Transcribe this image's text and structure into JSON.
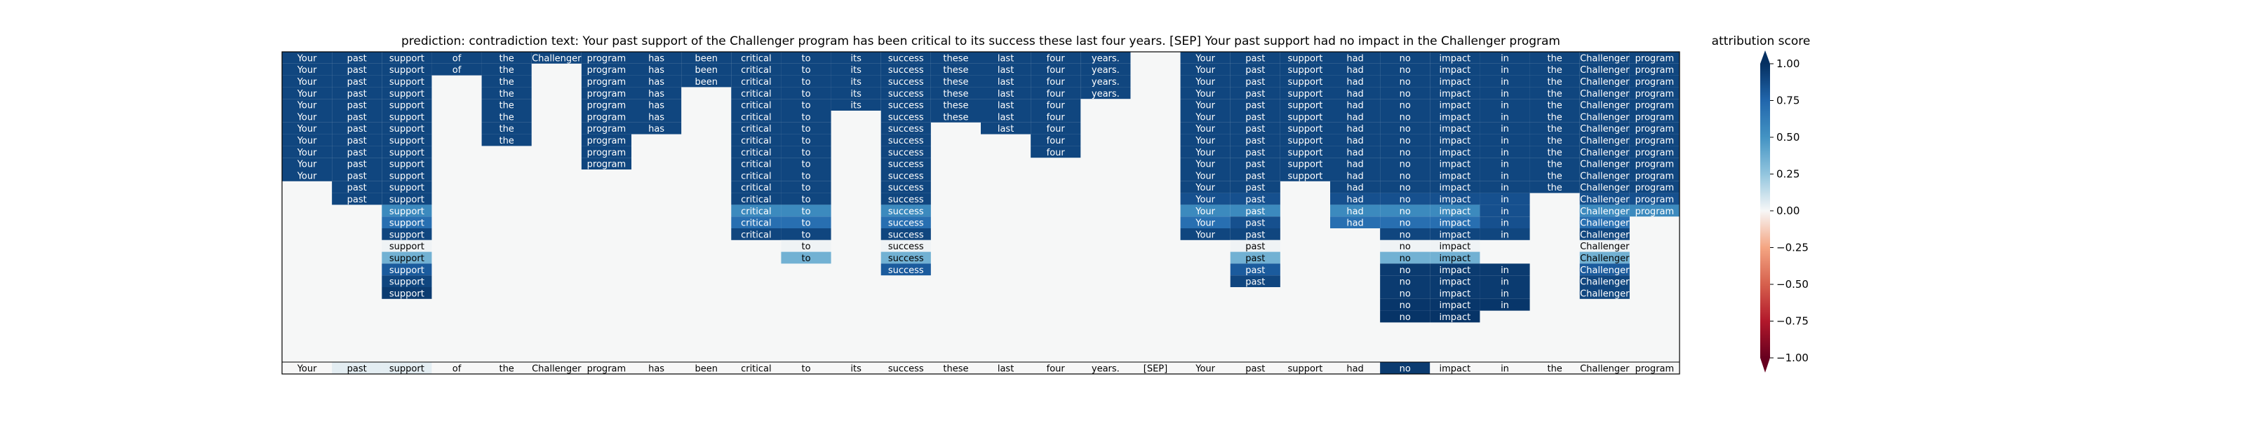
{
  "chart_data": {
    "type": "heatmap",
    "title": "prediction:  contradiction     text:  Your past support of the Challenger program has been critical to its success these last four years. [SEP] Your past support had no impact in the Challenger program",
    "tokens": [
      "Your",
      "past",
      "support",
      "of",
      "the",
      "Challenger",
      "program",
      "has",
      "been",
      "critical",
      "to",
      "its",
      "success",
      "these",
      "last",
      "four",
      "years.",
      "[SEP]",
      "Your",
      "past",
      "support",
      "had",
      "no",
      "impact",
      "in",
      "the",
      "Challenger",
      "program"
    ],
    "rows": [
      [
        0.9,
        0.9,
        0.9,
        0.9,
        0.9,
        0.9,
        0.9,
        0.9,
        0.9,
        0.9,
        0.9,
        0.9,
        0.9,
        0.9,
        0.9,
        0.9,
        0.9,
        null,
        0.9,
        0.9,
        0.9,
        0.9,
        0.9,
        0.9,
        0.9,
        0.9,
        0.9,
        0.9
      ],
      [
        0.9,
        0.9,
        0.9,
        0.9,
        0.9,
        null,
        0.9,
        0.9,
        0.9,
        0.9,
        0.9,
        0.9,
        0.9,
        0.9,
        0.9,
        0.9,
        0.9,
        null,
        0.9,
        0.9,
        0.9,
        0.9,
        0.9,
        0.9,
        0.9,
        0.9,
        0.9,
        0.9
      ],
      [
        0.9,
        0.9,
        0.9,
        null,
        0.9,
        null,
        0.9,
        0.9,
        0.9,
        0.9,
        0.9,
        0.9,
        0.9,
        0.9,
        0.9,
        0.9,
        0.9,
        null,
        0.9,
        0.9,
        0.9,
        0.9,
        0.9,
        0.9,
        0.9,
        0.9,
        0.9,
        0.9
      ],
      [
        0.9,
        0.9,
        0.9,
        null,
        0.9,
        null,
        0.9,
        0.9,
        null,
        0.9,
        0.9,
        0.9,
        0.9,
        0.9,
        0.9,
        0.9,
        0.9,
        null,
        0.9,
        0.9,
        0.9,
        0.9,
        0.9,
        0.9,
        0.9,
        0.9,
        0.9,
        0.9
      ],
      [
        0.9,
        0.9,
        0.9,
        null,
        0.9,
        null,
        0.9,
        0.9,
        null,
        0.9,
        0.9,
        0.9,
        0.9,
        0.9,
        0.9,
        0.9,
        null,
        null,
        0.9,
        0.9,
        0.9,
        0.9,
        0.9,
        0.9,
        0.9,
        0.9,
        0.9,
        0.9
      ],
      [
        0.9,
        0.9,
        0.9,
        null,
        0.9,
        null,
        0.9,
        0.9,
        null,
        0.9,
        0.9,
        null,
        0.9,
        0.9,
        0.9,
        0.9,
        null,
        null,
        0.9,
        0.9,
        0.9,
        0.9,
        0.9,
        0.9,
        0.9,
        0.9,
        0.9,
        0.9
      ],
      [
        0.9,
        0.9,
        0.9,
        null,
        0.9,
        null,
        0.9,
        0.9,
        null,
        0.9,
        0.9,
        null,
        0.9,
        null,
        0.9,
        0.9,
        null,
        null,
        0.9,
        0.9,
        0.9,
        0.9,
        0.9,
        0.9,
        0.9,
        0.9,
        0.9,
        0.9
      ],
      [
        0.9,
        0.9,
        0.9,
        null,
        0.9,
        null,
        0.9,
        null,
        null,
        0.9,
        0.9,
        null,
        0.9,
        null,
        null,
        0.9,
        null,
        null,
        0.9,
        0.9,
        0.9,
        0.9,
        0.9,
        0.9,
        0.9,
        0.9,
        0.9,
        0.9
      ],
      [
        0.9,
        0.9,
        0.9,
        null,
        null,
        null,
        0.9,
        null,
        null,
        0.9,
        0.9,
        null,
        0.9,
        null,
        null,
        0.9,
        null,
        null,
        0.9,
        0.9,
        0.9,
        0.9,
        0.9,
        0.9,
        0.9,
        0.9,
        0.9,
        0.9
      ],
      [
        0.9,
        0.9,
        0.9,
        null,
        null,
        null,
        0.9,
        null,
        null,
        0.9,
        0.9,
        null,
        0.9,
        null,
        null,
        null,
        null,
        null,
        0.9,
        0.9,
        0.9,
        0.9,
        0.9,
        0.9,
        0.9,
        0.9,
        0.9,
        0.9
      ],
      [
        0.9,
        0.9,
        0.9,
        null,
        null,
        null,
        null,
        null,
        null,
        0.9,
        0.9,
        null,
        0.9,
        null,
        null,
        null,
        null,
        null,
        0.9,
        0.9,
        0.9,
        0.9,
        0.9,
        0.9,
        0.9,
        0.9,
        0.9,
        0.9
      ],
      [
        null,
        0.9,
        0.9,
        null,
        null,
        null,
        null,
        null,
        null,
        0.9,
        0.9,
        null,
        0.9,
        null,
        null,
        null,
        null,
        null,
        0.9,
        0.9,
        null,
        0.9,
        0.9,
        0.9,
        0.9,
        0.9,
        0.9,
        0.9
      ],
      [
        null,
        0.9,
        0.9,
        null,
        null,
        null,
        null,
        null,
        null,
        0.9,
        0.9,
        null,
        0.9,
        null,
        null,
        null,
        null,
        null,
        0.85,
        0.85,
        null,
        0.85,
        0.85,
        0.85,
        0.85,
        null,
        0.85,
        0.85
      ],
      [
        null,
        null,
        0.55,
        null,
        null,
        null,
        null,
        null,
        null,
        0.55,
        0.55,
        null,
        0.55,
        null,
        null,
        null,
        null,
        null,
        0.55,
        0.55,
        null,
        0.55,
        0.55,
        0.55,
        0.85,
        null,
        0.55,
        0.55
      ],
      [
        null,
        null,
        0.7,
        null,
        null,
        null,
        null,
        null,
        null,
        0.7,
        0.7,
        null,
        0.7,
        null,
        null,
        null,
        null,
        null,
        0.7,
        0.85,
        null,
        0.7,
        0.7,
        0.7,
        0.85,
        null,
        0.7,
        null
      ],
      [
        null,
        null,
        0.9,
        null,
        null,
        null,
        null,
        null,
        null,
        0.9,
        0.9,
        null,
        0.9,
        null,
        null,
        null,
        null,
        null,
        0.9,
        0.9,
        null,
        null,
        0.9,
        0.9,
        0.9,
        null,
        0.9,
        null
      ],
      [
        null,
        null,
        0.02,
        null,
        null,
        null,
        null,
        null,
        null,
        null,
        0.02,
        null,
        0.02,
        null,
        null,
        null,
        null,
        null,
        null,
        0.02,
        null,
        null,
        0.02,
        0.02,
        null,
        null,
        0.02,
        null
      ],
      [
        null,
        null,
        0.35,
        null,
        null,
        null,
        null,
        null,
        null,
        null,
        0.35,
        null,
        0.35,
        null,
        null,
        null,
        null,
        null,
        null,
        0.35,
        null,
        null,
        0.35,
        0.35,
        null,
        null,
        0.35,
        null
      ],
      [
        null,
        null,
        0.8,
        null,
        null,
        null,
        null,
        null,
        null,
        null,
        null,
        null,
        0.8,
        null,
        null,
        null,
        null,
        null,
        null,
        0.8,
        null,
        null,
        0.95,
        0.95,
        0.95,
        null,
        0.8,
        null
      ],
      [
        null,
        null,
        0.9,
        null,
        null,
        null,
        null,
        null,
        null,
        null,
        null,
        null,
        null,
        null,
        null,
        null,
        null,
        null,
        null,
        0.9,
        null,
        null,
        0.95,
        0.95,
        0.95,
        null,
        0.9,
        null
      ],
      [
        null,
        null,
        0.95,
        null,
        null,
        null,
        null,
        null,
        null,
        null,
        null,
        null,
        null,
        null,
        null,
        null,
        null,
        null,
        null,
        null,
        null,
        null,
        0.95,
        0.95,
        0.95,
        null,
        0.9,
        null
      ],
      [
        null,
        null,
        null,
        null,
        null,
        null,
        null,
        null,
        null,
        null,
        null,
        null,
        null,
        null,
        null,
        null,
        null,
        null,
        null,
        null,
        null,
        null,
        0.97,
        0.97,
        0.97,
        null,
        null,
        null
      ],
      [
        null,
        null,
        null,
        null,
        null,
        null,
        null,
        null,
        null,
        null,
        null,
        null,
        null,
        null,
        null,
        null,
        null,
        null,
        null,
        null,
        null,
        null,
        0.98,
        0.98,
        null,
        null,
        null,
        null
      ]
    ],
    "attribution_row": [
      0.0,
      0.05,
      0.05,
      0.0,
      0.0,
      0.0,
      0.0,
      0.0,
      0.0,
      0.0,
      0.0,
      0.0,
      0.0,
      0.0,
      0.0,
      0.0,
      0.0,
      0.0,
      0.0,
      0.0,
      0.0,
      0.0,
      0.95,
      0.0,
      0.0,
      0.0,
      0.0,
      0.0
    ],
    "colorbar": {
      "label": "attribution score",
      "range": [
        -1,
        1
      ],
      "ticks": [
        "1.00",
        "0.75",
        "0.50",
        "0.25",
        "0.00",
        "−0.25",
        "−0.50",
        "−0.75",
        "−1.00"
      ]
    }
  }
}
